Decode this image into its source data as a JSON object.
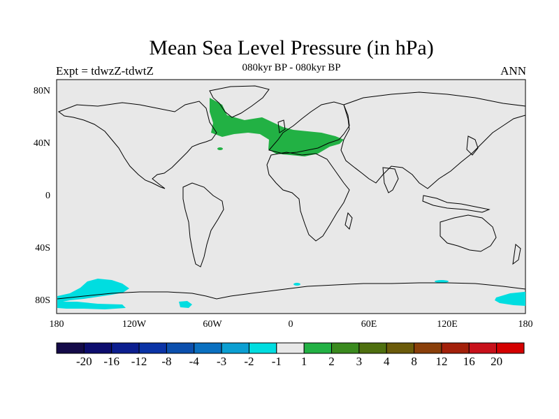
{
  "header": {
    "title": "Mean Sea Level Pressure (in hPa)",
    "subtitle": "080kyr BP - 080kyr BP",
    "left_label": "Expt = tdwzZ-tdwtZ",
    "right_label": "ANN"
  },
  "map": {
    "lat_labels": [
      "80N",
      "40N",
      "0",
      "40S",
      "80S"
    ],
    "lon_labels": [
      "180",
      "120W",
      "60W",
      "0",
      "60E",
      "120E",
      "180"
    ],
    "background_color": "#e8e8e8",
    "positive_color": "#22b144",
    "negative_color": "#00dde0"
  },
  "colorbar": {
    "labels": [
      "-20",
      "-16",
      "-12",
      "-8",
      "-4",
      "-3",
      "-2",
      "-1",
      "1",
      "2",
      "3",
      "4",
      "8",
      "12",
      "16",
      "20"
    ],
    "colors": [
      "#140a48",
      "#0d0d6e",
      "#0c1e8f",
      "#0a33a6",
      "#0b4fad",
      "#0a70c0",
      "#0b9fd2",
      "#00dde0",
      "#e8e8e8",
      "#22b144",
      "#3a8a1e",
      "#4e6f0f",
      "#6b5b0a",
      "#8a3f0a",
      "#a3200a",
      "#c8101a",
      "#d40000"
    ]
  }
}
